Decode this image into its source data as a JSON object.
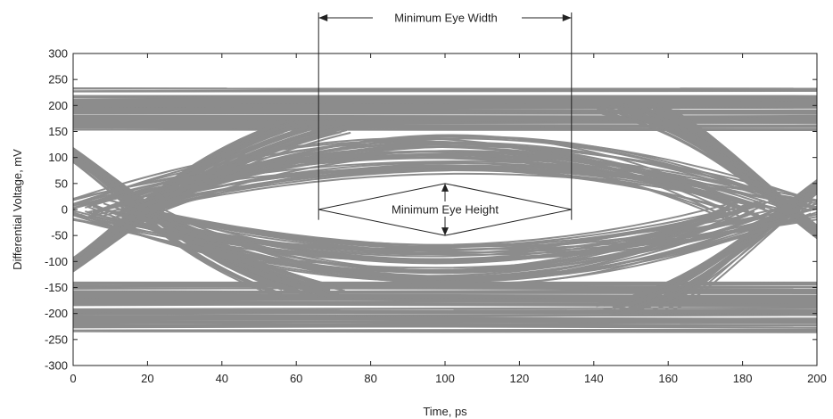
{
  "chart_data": {
    "type": "line",
    "title": "",
    "xlabel": "Time, ps",
    "ylabel": "Differential Voltage, mV",
    "xlim": [
      0,
      200
    ],
    "ylim": [
      -300,
      300
    ],
    "x_ticks": [
      0,
      20,
      40,
      60,
      80,
      100,
      120,
      140,
      160,
      180,
      200
    ],
    "y_ticks": [
      300,
      250,
      200,
      150,
      100,
      50,
      0,
      -50,
      -100,
      -150,
      -200,
      -250,
      -300
    ],
    "grid": false,
    "legend": "none",
    "trace_color": "#8c8c8c",
    "annotations": {
      "eye_width_label": "Minimum Eye Width",
      "eye_width_from": 66,
      "eye_width_to": 134,
      "eye_height_label": "Minimum Eye Height",
      "eye_height_from": -50,
      "eye_height_to": 50
    },
    "eye": {
      "crossings": [
        0,
        200
      ],
      "rail_high": [
        150,
        235
      ],
      "rail_low": [
        -235,
        -140
      ],
      "inner_opening_peak": 70,
      "inner_opening_trough": -70,
      "outer_band_peak": 150,
      "outer_band_trough": -150
    }
  }
}
